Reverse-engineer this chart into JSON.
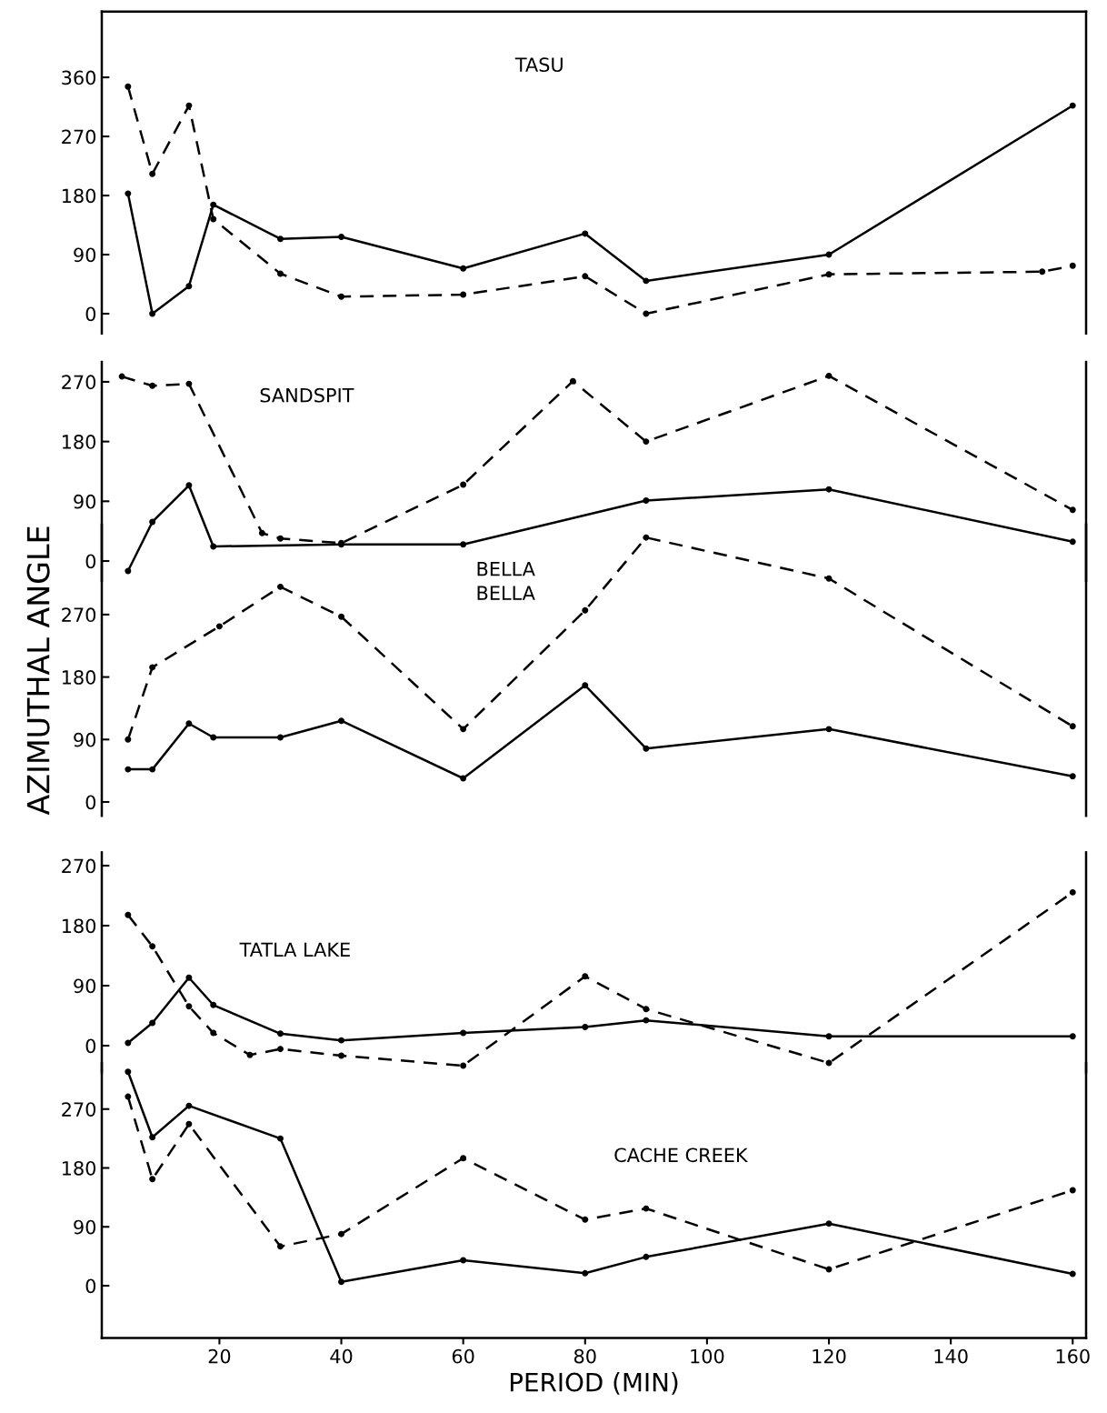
{
  "chart_data": [
    {
      "type": "line",
      "title": "TASU",
      "xlim": [
        0.7,
        162.2
      ],
      "xticks": [
        20,
        40,
        60,
        80,
        100,
        120,
        140,
        160
      ],
      "ylim": [
        -30,
        460
      ],
      "yticks": [
        0,
        90,
        180,
        270,
        360
      ],
      "tick_labels": "y",
      "marker": "circle",
      "grid": false,
      "legend": false,
      "series": [
        {
          "color": "#000000",
          "line_style": "solid",
          "x": [
            5,
            9,
            15,
            19,
            30,
            40,
            60,
            80,
            90,
            120,
            160
          ],
          "values": [
            183,
            0,
            42,
            166,
            114,
            117,
            69,
            122,
            50,
            90,
            317
          ]
        },
        {
          "color": "#000000",
          "line_style": "dashed",
          "x": [
            5,
            9,
            15,
            19,
            30,
            40,
            60,
            80,
            90,
            120,
            155,
            160
          ],
          "values": [
            346,
            213,
            317,
            144,
            61,
            26,
            29,
            57,
            0,
            60,
            64,
            73
          ]
        }
      ]
    },
    {
      "type": "line",
      "title": "SANDSPIT",
      "xlim": [
        0.7,
        162.2
      ],
      "xticks": [
        20,
        40,
        60,
        80,
        100,
        120,
        140,
        160
      ],
      "ylim": [
        -30,
        300
      ],
      "yticks": [
        0,
        90,
        180,
        270
      ],
      "tick_labels": "y",
      "marker": "circle",
      "grid": false,
      "legend": false,
      "series": [
        {
          "color": "#000000",
          "line_style": "solid",
          "x": [
            5,
            9,
            15,
            19,
            40,
            60,
            90,
            120,
            160
          ],
          "values": [
            -15,
            59,
            114,
            22,
            25,
            25,
            91,
            108,
            29
          ]
        },
        {
          "color": "#000000",
          "line_style": "dashed",
          "x": [
            4,
            9,
            15,
            27,
            30,
            40,
            60,
            78,
            90,
            120,
            160
          ],
          "values": [
            278,
            264,
            267,
            42,
            34,
            27,
            115,
            271,
            180,
            279,
            77
          ]
        }
      ]
    },
    {
      "type": "line",
      "title": "BELLA\nBELLA",
      "ylabel": "AZIMUTHAL ANGLE",
      "xlim": [
        0.7,
        162.2
      ],
      "xticks": [
        20,
        40,
        60,
        80,
        100,
        120,
        140,
        160
      ],
      "ylim": [
        -20,
        400
      ],
      "yticks": [
        0,
        90,
        180,
        270
      ],
      "tick_labels": "y",
      "marker": "circle",
      "grid": false,
      "legend": false,
      "series": [
        {
          "color": "#000000",
          "line_style": "solid",
          "x": [
            5,
            9,
            15,
            19,
            30,
            40,
            60,
            80,
            90,
            120,
            160
          ],
          "values": [
            47,
            47,
            113,
            93,
            93,
            117,
            34,
            168,
            77,
            105,
            37
          ]
        },
        {
          "color": "#000000",
          "line_style": "dashed",
          "x": [
            5,
            9,
            20,
            30,
            40,
            60,
            80,
            90,
            120,
            160
          ],
          "values": [
            90,
            194,
            253,
            310,
            267,
            105,
            276,
            381,
            322,
            109
          ]
        }
      ]
    },
    {
      "type": "line",
      "title": "TATLA LAKE",
      "xlim": [
        0.7,
        162.2
      ],
      "xticks": [
        20,
        40,
        60,
        80,
        100,
        120,
        140,
        160
      ],
      "ylim": [
        -40,
        290
      ],
      "yticks": [
        0,
        90,
        180,
        270
      ],
      "tick_labels": "y",
      "marker": "circle",
      "grid": false,
      "legend": false,
      "series": [
        {
          "color": "#000000",
          "line_style": "solid",
          "x": [
            5,
            9,
            15,
            19,
            30,
            40,
            60,
            80,
            90,
            120,
            160
          ],
          "values": [
            4,
            34,
            102,
            61,
            18,
            8,
            19,
            28,
            38,
            14,
            14
          ]
        },
        {
          "color": "#000000",
          "line_style": "dashed",
          "x": [
            5,
            9,
            15,
            19,
            25,
            30,
            40,
            60,
            80,
            90,
            120,
            160
          ],
          "values": [
            196,
            149,
            59,
            19,
            -14,
            -5,
            -15,
            -30,
            104,
            55,
            -26,
            230
          ]
        }
      ]
    },
    {
      "type": "line",
      "title": "CACHE CREEK",
      "xlabel": "PERIOD (MIN)",
      "xlim": [
        0.7,
        162.2
      ],
      "xticks": [
        20,
        40,
        60,
        80,
        100,
        120,
        140,
        160
      ],
      "ylim": [
        -80,
        340
      ],
      "yticks": [
        0,
        90,
        180,
        270
      ],
      "marker": "circle",
      "grid": false,
      "legend": false,
      "series": [
        {
          "color": "#000000",
          "line_style": "solid",
          "x": [
            5,
            9,
            15,
            30,
            40,
            60,
            80,
            90,
            120,
            160
          ],
          "values": [
            327,
            227,
            275,
            225,
            6,
            39,
            19,
            44,
            95,
            18
          ]
        },
        {
          "color": "#000000",
          "line_style": "dashed",
          "x": [
            5,
            9,
            15,
            30,
            40,
            60,
            80,
            90,
            120,
            160
          ],
          "values": [
            289,
            163,
            247,
            60,
            79,
            195,
            101,
            118,
            25,
            146
          ]
        }
      ]
    }
  ]
}
